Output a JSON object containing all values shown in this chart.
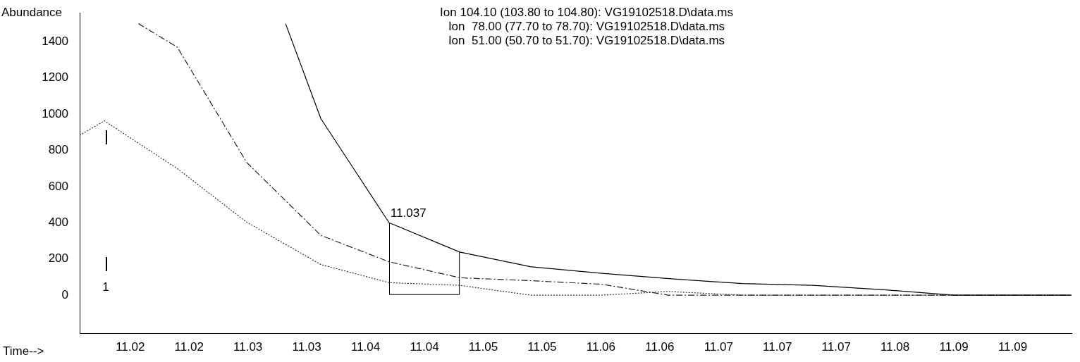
{
  "chart_data": {
    "type": "line",
    "xlabel": "Time-->",
    "ylabel": "Abundance",
    "annotations": [
      "Ion 104.10 (103.80 to 104.80): VG19102518.D\\data.ms",
      "Ion  78.00 (77.70 to 78.70): VG19102518.D\\data.ms",
      "Ion  51.00 (50.70 to 51.70): VG19102518.D\\data.ms",
      {
        "text": "11.037",
        "x": 11.037,
        "y": 400
      },
      "1"
    ],
    "series": [
      {
        "color": "#000000",
        "line_style": "solid",
        "x": [
          11.0282,
          11.0312,
          11.037,
          11.043,
          11.049,
          11.0551,
          11.061,
          11.067,
          11.073,
          11.079,
          11.085,
          11.095
        ],
        "values": [
          1500,
          975,
          400,
          238,
          157,
          120,
          90,
          64,
          54,
          30,
          0,
          0
        ]
      },
      {
        "color": "#222222",
        "line_style": "dashed",
        "x": [
          11.0157,
          11.019,
          11.0249,
          11.0312,
          11.037,
          11.043,
          11.049,
          11.0551,
          11.0607,
          11.067,
          11.073,
          11.079,
          11.085,
          11.095
        ],
        "values": [
          1500,
          1370,
          733,
          330,
          184,
          96,
          80,
          60,
          0,
          0,
          0,
          0,
          0,
          0
        ]
      },
      {
        "color": "#333333",
        "line_style": "dotted",
        "x": [
          11.0107,
          11.0128,
          11.019,
          11.0249,
          11.0312,
          11.037,
          11.043,
          11.049,
          11.0551,
          11.0607,
          11.067,
          11.073,
          11.079,
          11.085,
          11.095
        ],
        "values": [
          883,
          963,
          699,
          403,
          169,
          69,
          54,
          0,
          0,
          20,
          0,
          0,
          0,
          0,
          0
        ]
      }
    ],
    "xlim": [
      11.0107,
      11.095
    ],
    "xticks": [
      {
        "value": 11.015,
        "label": "11.02"
      },
      {
        "value": 11.02,
        "label": "11.02"
      },
      {
        "value": 11.025,
        "label": "11.03"
      },
      {
        "value": 11.03,
        "label": "11.03"
      },
      {
        "value": 11.035,
        "label": "11.04"
      },
      {
        "value": 11.04,
        "label": "11.04"
      },
      {
        "value": 11.045,
        "label": "11.05"
      },
      {
        "value": 11.05,
        "label": "11.05"
      },
      {
        "value": 11.055,
        "label": "11.06"
      },
      {
        "value": 11.06,
        "label": "11.06"
      },
      {
        "value": 11.065,
        "label": "11.07"
      },
      {
        "value": 11.07,
        "label": "11.07"
      },
      {
        "value": 11.075,
        "label": "11.07"
      },
      {
        "value": 11.08,
        "label": "11.08"
      },
      {
        "value": 11.085,
        "label": "11.09"
      },
      {
        "value": 11.09,
        "label": "11.09"
      }
    ],
    "ylim": [
      -210,
      1560
    ],
    "yticks": [
      0,
      200,
      400,
      600,
      800,
      1000,
      1200,
      1400
    ],
    "grid": false,
    "legend": false,
    "marker": "none"
  }
}
